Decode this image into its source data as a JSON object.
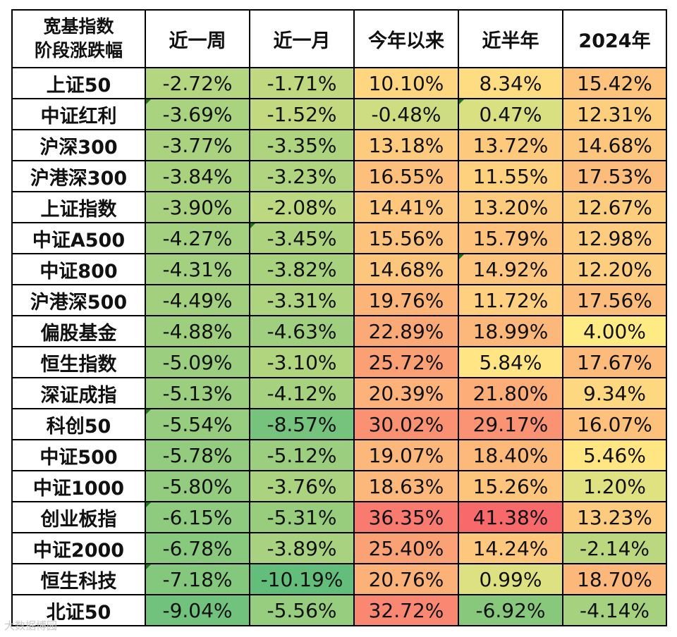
{
  "table": {
    "header_line1": "宽基指数",
    "header_line2": "阶段涨跌幅",
    "columns": [
      "近一周",
      "近一月",
      "今年以来",
      "近半年",
      "2024年"
    ],
    "rows": [
      {
        "name": "上证50",
        "values": [
          "-2.72%",
          "-1.71%",
          "10.10%",
          "8.34%",
          "15.42%"
        ]
      },
      {
        "name": "中证红利",
        "values": [
          "-3.69%",
          "-1.52%",
          "-0.48%",
          "0.47%",
          "12.31%"
        ]
      },
      {
        "name": "沪深300",
        "values": [
          "-3.77%",
          "-3.35%",
          "13.18%",
          "13.72%",
          "14.68%"
        ]
      },
      {
        "name": "沪港深300",
        "values": [
          "-3.84%",
          "-3.23%",
          "16.55%",
          "11.55%",
          "17.53%"
        ]
      },
      {
        "name": "上证指数",
        "values": [
          "-3.90%",
          "-2.08%",
          "14.41%",
          "13.20%",
          "12.67%"
        ]
      },
      {
        "name": "中证A500",
        "values": [
          "-4.27%",
          "-3.45%",
          "15.56%",
          "15.79%",
          "12.98%"
        ]
      },
      {
        "name": "中证800",
        "values": [
          "-4.31%",
          "-3.82%",
          "14.68%",
          "14.92%",
          "12.20%"
        ]
      },
      {
        "name": "沪港深500",
        "values": [
          "-4.49%",
          "-3.31%",
          "19.76%",
          "11.72%",
          "17.56%"
        ]
      },
      {
        "name": "偏股基金",
        "values": [
          "-4.88%",
          "-4.63%",
          "22.89%",
          "18.99%",
          "4.00%"
        ]
      },
      {
        "name": "恒生指数",
        "values": [
          "-5.09%",
          "-3.10%",
          "25.72%",
          "5.84%",
          "17.67%"
        ]
      },
      {
        "name": "深证成指",
        "values": [
          "-5.13%",
          "-4.12%",
          "20.39%",
          "21.80%",
          "9.34%"
        ]
      },
      {
        "name": "科创50",
        "values": [
          "-5.54%",
          "-8.57%",
          "30.02%",
          "29.17%",
          "16.07%"
        ]
      },
      {
        "name": "中证500",
        "values": [
          "-5.78%",
          "-5.12%",
          "19.07%",
          "18.40%",
          "5.46%"
        ]
      },
      {
        "name": "中证1000",
        "values": [
          "-5.80%",
          "-3.76%",
          "18.63%",
          "15.26%",
          "1.20%"
        ]
      },
      {
        "name": "创业板指",
        "values": [
          "-6.15%",
          "-5.31%",
          "36.35%",
          "41.38%",
          "13.23%"
        ]
      },
      {
        "name": "中证2000",
        "values": [
          "-6.78%",
          "-3.89%",
          "25.40%",
          "14.24%",
          "-2.14%"
        ]
      },
      {
        "name": "恒生科技",
        "values": [
          "-7.18%",
          "-10.19%",
          "20.76%",
          "0.99%",
          "18.70%"
        ]
      },
      {
        "name": "北证50",
        "values": [
          "-9.04%",
          "-5.56%",
          "32.72%",
          "-6.92%",
          "-4.14%"
        ]
      }
    ]
  },
  "watermark": "大数据博园"
}
